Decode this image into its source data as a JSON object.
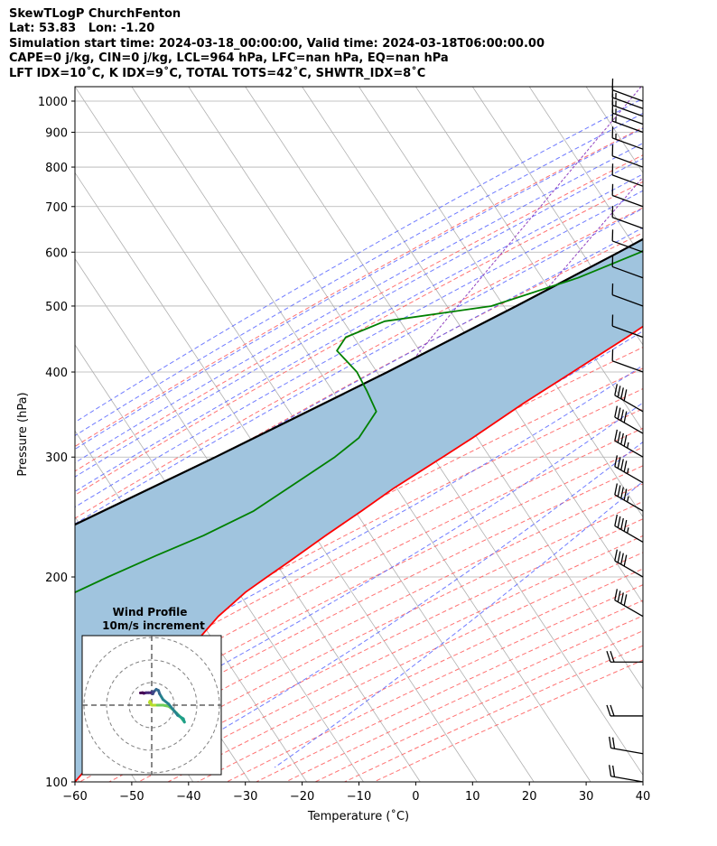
{
  "header": {
    "line1": "SkewTLogP ChurchFenton",
    "line2": "Lat: 53.83   Lon: -1.20",
    "line3": "Simulation start time: 2024-03-18_00:00:00, Valid time: 2024-03-18T06:00:00.00",
    "line4": "CAPE=0 j/kg, CIN=0 j/kg, LCL=964 hPa, LFC=nan hPa, EQ=nan hPa",
    "line5": "LFT IDX=10˚C, K IDX=9˚C, TOTAL TOTS=42˚C, SHWTR_IDX=8˚C"
  },
  "chart_data": {
    "type": "line",
    "xlabel": "Temperature (˚C)",
    "ylabel": "Pressure (hPa)",
    "xlim": [
      -60,
      40
    ],
    "ylim": [
      1050,
      100
    ],
    "y_scale": "log",
    "x_ticks": [
      "−60",
      "−50",
      "−40",
      "−30",
      "−20",
      "−10",
      "0",
      "10",
      "20",
      "30",
      "40"
    ],
    "y_ticks": [
      "1000",
      "900",
      "800",
      "700",
      "600",
      "500",
      "400",
      "300",
      "200",
      "100"
    ],
    "grid": true,
    "colors": {
      "temperature": "#ff0000",
      "dewpoint": "#008000",
      "parcel": "#000000",
      "fill": "#a0c4de",
      "dry_adiabats": "#ff5050",
      "moist_adiabats": "#4050ff",
      "mixing_ratio": "#9040c0",
      "skewed_isotherms": "#b0b0b0"
    },
    "series": [
      {
        "key": "temperature",
        "pressure": [
          1000,
          990,
          975,
          960,
          900,
          850,
          800,
          700,
          600,
          500,
          450,
          400,
          360,
          320,
          300,
          270,
          250,
          230,
          210,
          200,
          190,
          175,
          160,
          140,
          125,
          110,
          100
        ],
        "values": [
          8.0,
          9.0,
          9.0,
          10.0,
          10.0,
          9.5,
          8.5,
          6.0,
          0.0,
          -10.0,
          -14.5,
          -20.0,
          -25.0,
          -30.0,
          -33.0,
          -38.0,
          -41.0,
          -44.5,
          -48.0,
          -50.0,
          -52.0,
          -54.0,
          -55.0,
          -57.0,
          -58.0,
          -59.0,
          -60.0
        ]
      },
      {
        "key": "dewpoint",
        "pressure": [
          1000,
          985,
          960,
          900,
          850,
          800,
          750,
          700,
          650,
          600,
          550,
          500,
          475,
          450,
          430,
          400,
          375,
          350,
          320,
          300,
          280,
          250,
          230,
          215,
          200,
          185,
          175,
          160,
          140,
          125,
          110,
          100
        ],
        "values": [
          5.0,
          5.5,
          4.0,
          -3.0,
          -8.5,
          -12.0,
          -13.0,
          -15.0,
          -18.0,
          -22.0,
          -30.0,
          -42.0,
          -59.0,
          -64.0,
          -64.0,
          -58.0,
          -54.0,
          -50.0,
          -50.0,
          -52.0,
          -55.0,
          -60.0,
          -66.0,
          -72.0,
          -78.0,
          -84.0,
          -89.0,
          -89.0,
          -88.0,
          -87.0,
          -87.0,
          -88.0
        ]
      },
      {
        "key": "parcel",
        "pressure": [
          1000,
          964,
          900,
          800,
          700,
          600,
          500,
          400,
          300,
          200,
          100
        ],
        "values": [
          7.3,
          4.2,
          -1.0,
          -8.2,
          -16.3,
          -25.8,
          -37.6,
          -52.6,
          -73.0,
          -103.0,
          -160.0
        ]
      }
    ],
    "wind_barbs": [
      {
        "pressure": 1000,
        "speed_kt": 10,
        "dir_deg": 290
      },
      {
        "pressure": 975,
        "speed_kt": 15,
        "dir_deg": 290
      },
      {
        "pressure": 950,
        "speed_kt": 15,
        "dir_deg": 290
      },
      {
        "pressure": 925,
        "speed_kt": 15,
        "dir_deg": 290
      },
      {
        "pressure": 900,
        "speed_kt": 15,
        "dir_deg": 290
      },
      {
        "pressure": 850,
        "speed_kt": 15,
        "dir_deg": 290
      },
      {
        "pressure": 800,
        "speed_kt": 10,
        "dir_deg": 290
      },
      {
        "pressure": 750,
        "speed_kt": 10,
        "dir_deg": 290
      },
      {
        "pressure": 700,
        "speed_kt": 10,
        "dir_deg": 290
      },
      {
        "pressure": 650,
        "speed_kt": 10,
        "dir_deg": 290
      },
      {
        "pressure": 600,
        "speed_kt": 10,
        "dir_deg": 290
      },
      {
        "pressure": 550,
        "speed_kt": 10,
        "dir_deg": 290
      },
      {
        "pressure": 500,
        "speed_kt": 10,
        "dir_deg": 290
      },
      {
        "pressure": 450,
        "speed_kt": 10,
        "dir_deg": 290
      },
      {
        "pressure": 400,
        "speed_kt": 10,
        "dir_deg": 290
      },
      {
        "pressure": 350,
        "speed_kt": 40,
        "dir_deg": 300
      },
      {
        "pressure": 325,
        "speed_kt": 40,
        "dir_deg": 300
      },
      {
        "pressure": 300,
        "speed_kt": 45,
        "dir_deg": 300
      },
      {
        "pressure": 275,
        "speed_kt": 45,
        "dir_deg": 300
      },
      {
        "pressure": 250,
        "speed_kt": 45,
        "dir_deg": 300
      },
      {
        "pressure": 225,
        "speed_kt": 45,
        "dir_deg": 300
      },
      {
        "pressure": 200,
        "speed_kt": 40,
        "dir_deg": 300
      },
      {
        "pressure": 175,
        "speed_kt": 40,
        "dir_deg": 300
      },
      {
        "pressure": 150,
        "speed_kt": 20,
        "dir_deg": 270
      },
      {
        "pressure": 125,
        "speed_kt": 20,
        "dir_deg": 270
      },
      {
        "pressure": 110,
        "speed_kt": 20,
        "dir_deg": 280
      },
      {
        "pressure": 100,
        "speed_kt": 20,
        "dir_deg": 280
      }
    ],
    "inset": {
      "title_line1": "Wind Profile",
      "title_line2": "10m/s increment",
      "hodograph": {
        "u": [
          -0.3,
          -0.8,
          -1.3,
          -1.6,
          -2.0,
          0.5,
          5.0,
          10.0,
          15.0,
          19.0,
          22.0,
          26.0,
          29.0,
          28.0,
          23.0,
          15.0,
          10.0,
          7.0,
          6.0,
          4.0,
          2.0,
          1.0,
          0.5,
          -1.0,
          -3.0,
          -5.0,
          -7.0,
          -8.0,
          -10.0
        ],
        "v": [
          0.1,
          1.5,
          3.0,
          3.5,
          2.3,
          0.0,
          0.0,
          0.0,
          -1.0,
          -4.0,
          -7.0,
          -11.0,
          -15.0,
          -12.0,
          -9.0,
          1.0,
          5.0,
          10.0,
          13.0,
          14.0,
          12.0,
          10.0,
          12.0,
          11.0,
          11.0,
          11.0,
          10.5,
          11.0,
          10.8
        ]
      }
    }
  }
}
